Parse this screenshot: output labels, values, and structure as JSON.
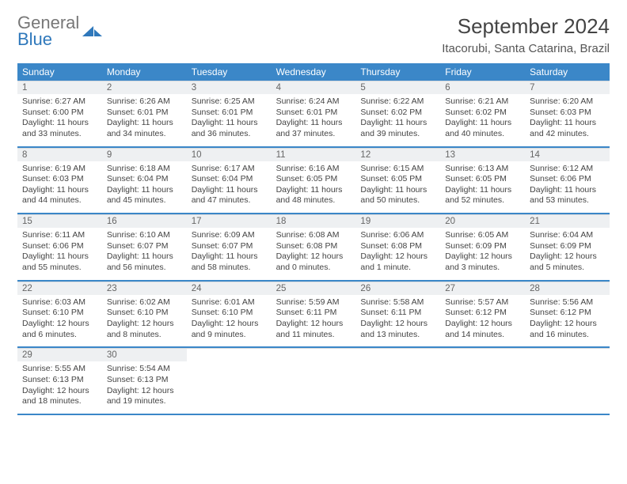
{
  "logo": {
    "word1": "General",
    "word2": "Blue"
  },
  "title": "September 2024",
  "location": "Itacorubi, Santa Catarina, Brazil",
  "colors": {
    "header_bg": "#3b87c8",
    "header_text": "#ffffff",
    "dnum_bg": "#eef0f2",
    "rule": "#3b87c8",
    "text": "#444444"
  },
  "font": {
    "family": "Arial",
    "title_size_pt": 20,
    "location_size_pt": 11,
    "head_size_pt": 9,
    "body_size_pt": 8
  },
  "weekdays": [
    "Sunday",
    "Monday",
    "Tuesday",
    "Wednesday",
    "Thursday",
    "Friday",
    "Saturday"
  ],
  "weeks": [
    [
      {
        "n": "1",
        "sunrise": "6:27 AM",
        "sunset": "6:00 PM",
        "daylight": "11 hours and 33 minutes."
      },
      {
        "n": "2",
        "sunrise": "6:26 AM",
        "sunset": "6:01 PM",
        "daylight": "11 hours and 34 minutes."
      },
      {
        "n": "3",
        "sunrise": "6:25 AM",
        "sunset": "6:01 PM",
        "daylight": "11 hours and 36 minutes."
      },
      {
        "n": "4",
        "sunrise": "6:24 AM",
        "sunset": "6:01 PM",
        "daylight": "11 hours and 37 minutes."
      },
      {
        "n": "5",
        "sunrise": "6:22 AM",
        "sunset": "6:02 PM",
        "daylight": "11 hours and 39 minutes."
      },
      {
        "n": "6",
        "sunrise": "6:21 AM",
        "sunset": "6:02 PM",
        "daylight": "11 hours and 40 minutes."
      },
      {
        "n": "7",
        "sunrise": "6:20 AM",
        "sunset": "6:03 PM",
        "daylight": "11 hours and 42 minutes."
      }
    ],
    [
      {
        "n": "8",
        "sunrise": "6:19 AM",
        "sunset": "6:03 PM",
        "daylight": "11 hours and 44 minutes."
      },
      {
        "n": "9",
        "sunrise": "6:18 AM",
        "sunset": "6:04 PM",
        "daylight": "11 hours and 45 minutes."
      },
      {
        "n": "10",
        "sunrise": "6:17 AM",
        "sunset": "6:04 PM",
        "daylight": "11 hours and 47 minutes."
      },
      {
        "n": "11",
        "sunrise": "6:16 AM",
        "sunset": "6:05 PM",
        "daylight": "11 hours and 48 minutes."
      },
      {
        "n": "12",
        "sunrise": "6:15 AM",
        "sunset": "6:05 PM",
        "daylight": "11 hours and 50 minutes."
      },
      {
        "n": "13",
        "sunrise": "6:13 AM",
        "sunset": "6:05 PM",
        "daylight": "11 hours and 52 minutes."
      },
      {
        "n": "14",
        "sunrise": "6:12 AM",
        "sunset": "6:06 PM",
        "daylight": "11 hours and 53 minutes."
      }
    ],
    [
      {
        "n": "15",
        "sunrise": "6:11 AM",
        "sunset": "6:06 PM",
        "daylight": "11 hours and 55 minutes."
      },
      {
        "n": "16",
        "sunrise": "6:10 AM",
        "sunset": "6:07 PM",
        "daylight": "11 hours and 56 minutes."
      },
      {
        "n": "17",
        "sunrise": "6:09 AM",
        "sunset": "6:07 PM",
        "daylight": "11 hours and 58 minutes."
      },
      {
        "n": "18",
        "sunrise": "6:08 AM",
        "sunset": "6:08 PM",
        "daylight": "12 hours and 0 minutes."
      },
      {
        "n": "19",
        "sunrise": "6:06 AM",
        "sunset": "6:08 PM",
        "daylight": "12 hours and 1 minute."
      },
      {
        "n": "20",
        "sunrise": "6:05 AM",
        "sunset": "6:09 PM",
        "daylight": "12 hours and 3 minutes."
      },
      {
        "n": "21",
        "sunrise": "6:04 AM",
        "sunset": "6:09 PM",
        "daylight": "12 hours and 5 minutes."
      }
    ],
    [
      {
        "n": "22",
        "sunrise": "6:03 AM",
        "sunset": "6:10 PM",
        "daylight": "12 hours and 6 minutes."
      },
      {
        "n": "23",
        "sunrise": "6:02 AM",
        "sunset": "6:10 PM",
        "daylight": "12 hours and 8 minutes."
      },
      {
        "n": "24",
        "sunrise": "6:01 AM",
        "sunset": "6:10 PM",
        "daylight": "12 hours and 9 minutes."
      },
      {
        "n": "25",
        "sunrise": "5:59 AM",
        "sunset": "6:11 PM",
        "daylight": "12 hours and 11 minutes."
      },
      {
        "n": "26",
        "sunrise": "5:58 AM",
        "sunset": "6:11 PM",
        "daylight": "12 hours and 13 minutes."
      },
      {
        "n": "27",
        "sunrise": "5:57 AM",
        "sunset": "6:12 PM",
        "daylight": "12 hours and 14 minutes."
      },
      {
        "n": "28",
        "sunrise": "5:56 AM",
        "sunset": "6:12 PM",
        "daylight": "12 hours and 16 minutes."
      }
    ],
    [
      {
        "n": "29",
        "sunrise": "5:55 AM",
        "sunset": "6:13 PM",
        "daylight": "12 hours and 18 minutes."
      },
      {
        "n": "30",
        "sunrise": "5:54 AM",
        "sunset": "6:13 PM",
        "daylight": "12 hours and 19 minutes."
      },
      null,
      null,
      null,
      null,
      null
    ]
  ]
}
